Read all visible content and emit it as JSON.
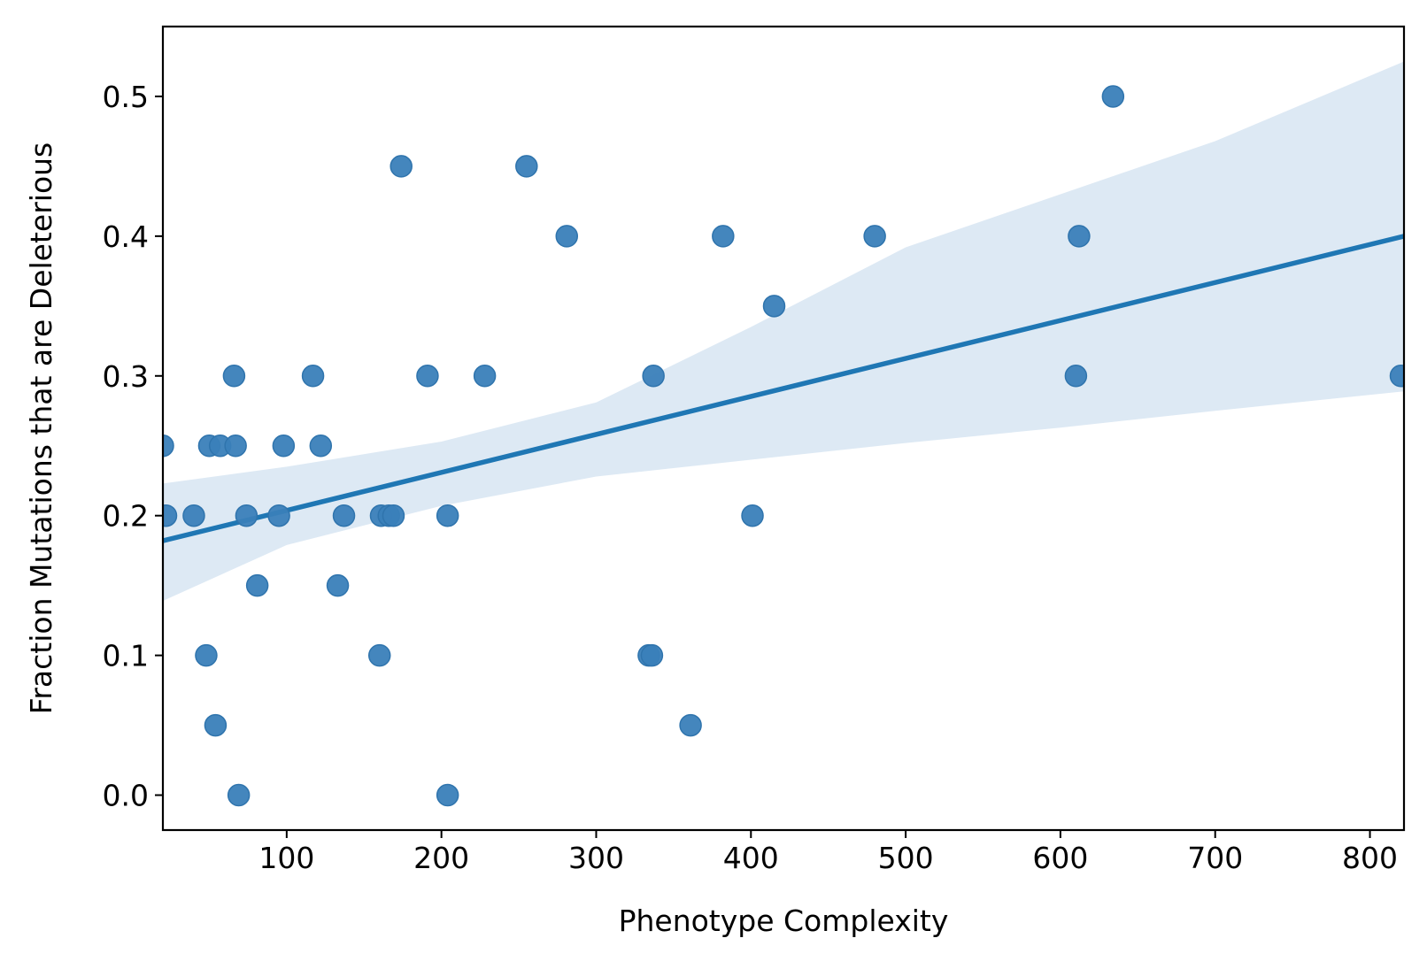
{
  "chart_data": {
    "type": "scatter",
    "title": "",
    "xlabel": "Phenotype Complexity",
    "ylabel": "Fraction Mutations that are Deleterious",
    "xlim": [
      20,
      822
    ],
    "ylim": [
      -0.025,
      0.55
    ],
    "xticks": [
      100,
      200,
      300,
      400,
      500,
      600,
      700,
      800
    ],
    "yticks": [
      0.0,
      0.1,
      0.2,
      0.3,
      0.4,
      0.5
    ],
    "xtick_labels": [
      "100",
      "200",
      "300",
      "400",
      "500",
      "600",
      "700",
      "800"
    ],
    "ytick_labels": [
      "0.0",
      "0.1",
      "0.2",
      "0.3",
      "0.4",
      "0.5"
    ],
    "grid": false,
    "legend": false,
    "colors": {
      "points": "#3a80b9",
      "line": "#1f77b4",
      "band": "#dde9f4"
    },
    "points": [
      {
        "x": 20,
        "y": 0.25
      },
      {
        "x": 22,
        "y": 0.2
      },
      {
        "x": 40,
        "y": 0.2
      },
      {
        "x": 48,
        "y": 0.1
      },
      {
        "x": 50,
        "y": 0.25
      },
      {
        "x": 54,
        "y": 0.05
      },
      {
        "x": 57,
        "y": 0.25
      },
      {
        "x": 66,
        "y": 0.3
      },
      {
        "x": 67,
        "y": 0.25
      },
      {
        "x": 69,
        "y": 0.0
      },
      {
        "x": 74,
        "y": 0.2
      },
      {
        "x": 81,
        "y": 0.15
      },
      {
        "x": 95,
        "y": 0.2
      },
      {
        "x": 98,
        "y": 0.25
      },
      {
        "x": 117,
        "y": 0.3
      },
      {
        "x": 122,
        "y": 0.25
      },
      {
        "x": 133,
        "y": 0.15
      },
      {
        "x": 137,
        "y": 0.2
      },
      {
        "x": 160,
        "y": 0.1
      },
      {
        "x": 161,
        "y": 0.2
      },
      {
        "x": 166,
        "y": 0.2
      },
      {
        "x": 169,
        "y": 0.2
      },
      {
        "x": 174,
        "y": 0.45
      },
      {
        "x": 191,
        "y": 0.3
      },
      {
        "x": 204,
        "y": 0.2
      },
      {
        "x": 204,
        "y": 0.0
      },
      {
        "x": 228,
        "y": 0.3
      },
      {
        "x": 255,
        "y": 0.45
      },
      {
        "x": 281,
        "y": 0.4
      },
      {
        "x": 334,
        "y": 0.1
      },
      {
        "x": 336,
        "y": 0.1
      },
      {
        "x": 337,
        "y": 0.3
      },
      {
        "x": 361,
        "y": 0.05
      },
      {
        "x": 382,
        "y": 0.4
      },
      {
        "x": 401,
        "y": 0.2
      },
      {
        "x": 415,
        "y": 0.35
      },
      {
        "x": 480,
        "y": 0.4
      },
      {
        "x": 610,
        "y": 0.3
      },
      {
        "x": 612,
        "y": 0.4
      },
      {
        "x": 634,
        "y": 0.5
      },
      {
        "x": 820,
        "y": 0.3
      }
    ],
    "regression": {
      "x": [
        20,
        822
      ],
      "y": [
        0.182,
        0.4
      ]
    },
    "confidence_band": {
      "x": [
        20,
        100,
        200,
        300,
        400,
        500,
        600,
        700,
        822
      ],
      "upper": [
        0.223,
        0.235,
        0.253,
        0.281,
        0.335,
        0.392,
        0.43,
        0.468,
        0.525
      ],
      "lower": [
        0.139,
        0.179,
        0.207,
        0.228,
        0.24,
        0.252,
        0.263,
        0.275,
        0.289
      ]
    }
  }
}
